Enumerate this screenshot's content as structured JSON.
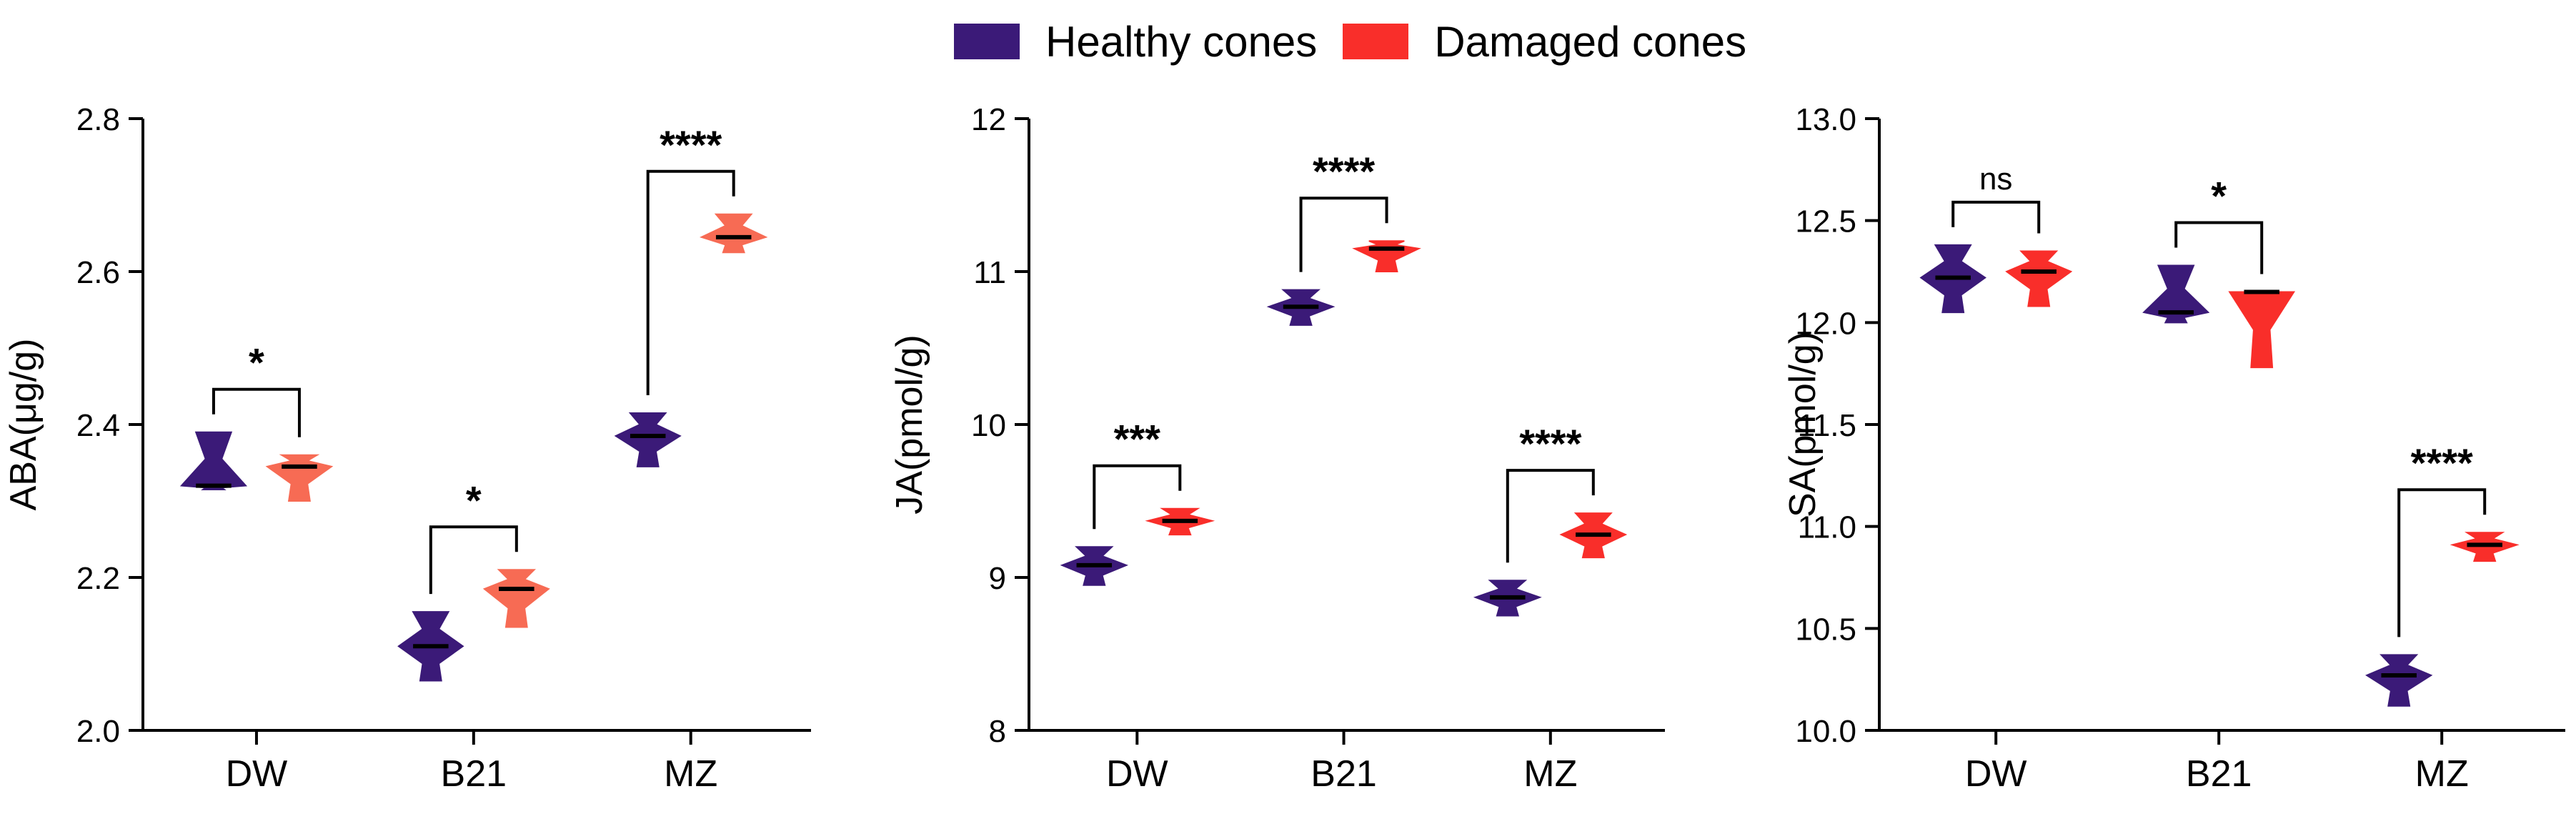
{
  "legend": {
    "series": [
      {
        "name": "Healthy cones",
        "color": "#3b1a78"
      },
      {
        "name": "Damaged cones",
        "color": "#f92e2a"
      }
    ]
  },
  "chart_data": [
    {
      "type": "violin",
      "ylabel": "ABA(μg/g)",
      "categories": [
        "DW",
        "B21",
        "MZ"
      ],
      "ylim": [
        2.0,
        2.8
      ],
      "yticks": [
        "2.0",
        "2.2",
        "2.4",
        "2.6",
        "2.8"
      ],
      "damaged_color": "#f76b54",
      "series": [
        {
          "name": "Healthy cones",
          "medians": [
            2.32,
            2.11,
            2.385
          ],
          "mins": [
            2.315,
            2.065,
            2.345
          ],
          "maxs": [
            2.39,
            2.155,
            2.415
          ]
        },
        {
          "name": "Damaged cones",
          "medians": [
            2.345,
            2.185,
            2.645
          ],
          "mins": [
            2.3,
            2.135,
            2.625
          ],
          "maxs": [
            2.36,
            2.21,
            2.675
          ]
        }
      ],
      "significance": [
        "*",
        "*",
        "****"
      ]
    },
    {
      "type": "violin",
      "ylabel": "JA(pmol/g)",
      "categories": [
        "DW",
        "B21",
        "MZ"
      ],
      "ylim": [
        8,
        12
      ],
      "yticks": [
        "8",
        "9",
        "10",
        "11",
        "12"
      ],
      "damaged_color": "#f92e2a",
      "series": [
        {
          "name": "Healthy cones",
          "medians": [
            9.08,
            10.77,
            8.87
          ],
          "mins": [
            8.95,
            10.65,
            8.75
          ],
          "maxs": [
            9.2,
            10.88,
            8.98
          ]
        },
        {
          "name": "Damaged cones",
          "medians": [
            9.37,
            11.15,
            9.28
          ],
          "mins": [
            9.28,
            11.0,
            9.13
          ],
          "maxs": [
            9.45,
            11.2,
            9.42
          ]
        }
      ],
      "significance": [
        "***",
        "****",
        "****"
      ]
    },
    {
      "type": "violin",
      "ylabel": "SA(pmol/g)",
      "categories": [
        "DW",
        "B21",
        "MZ"
      ],
      "ylim": [
        10.0,
        13.0
      ],
      "yticks": [
        "10.0",
        "10.5",
        "11.0",
        "11.5",
        "12.0",
        "12.5",
        "13.0"
      ],
      "damaged_color": "#f92e2a",
      "series": [
        {
          "name": "Healthy cones",
          "medians": [
            12.22,
            12.05,
            10.27
          ],
          "mins": [
            12.05,
            12.0,
            10.12
          ],
          "maxs": [
            12.38,
            12.28,
            10.37
          ]
        },
        {
          "name": "Damaged cones",
          "medians": [
            12.25,
            12.15,
            10.91
          ],
          "mins": [
            12.08,
            11.78,
            10.83
          ],
          "maxs": [
            12.35,
            12.15,
            10.97
          ]
        }
      ],
      "significance": [
        "ns",
        "*",
        "****"
      ]
    }
  ]
}
